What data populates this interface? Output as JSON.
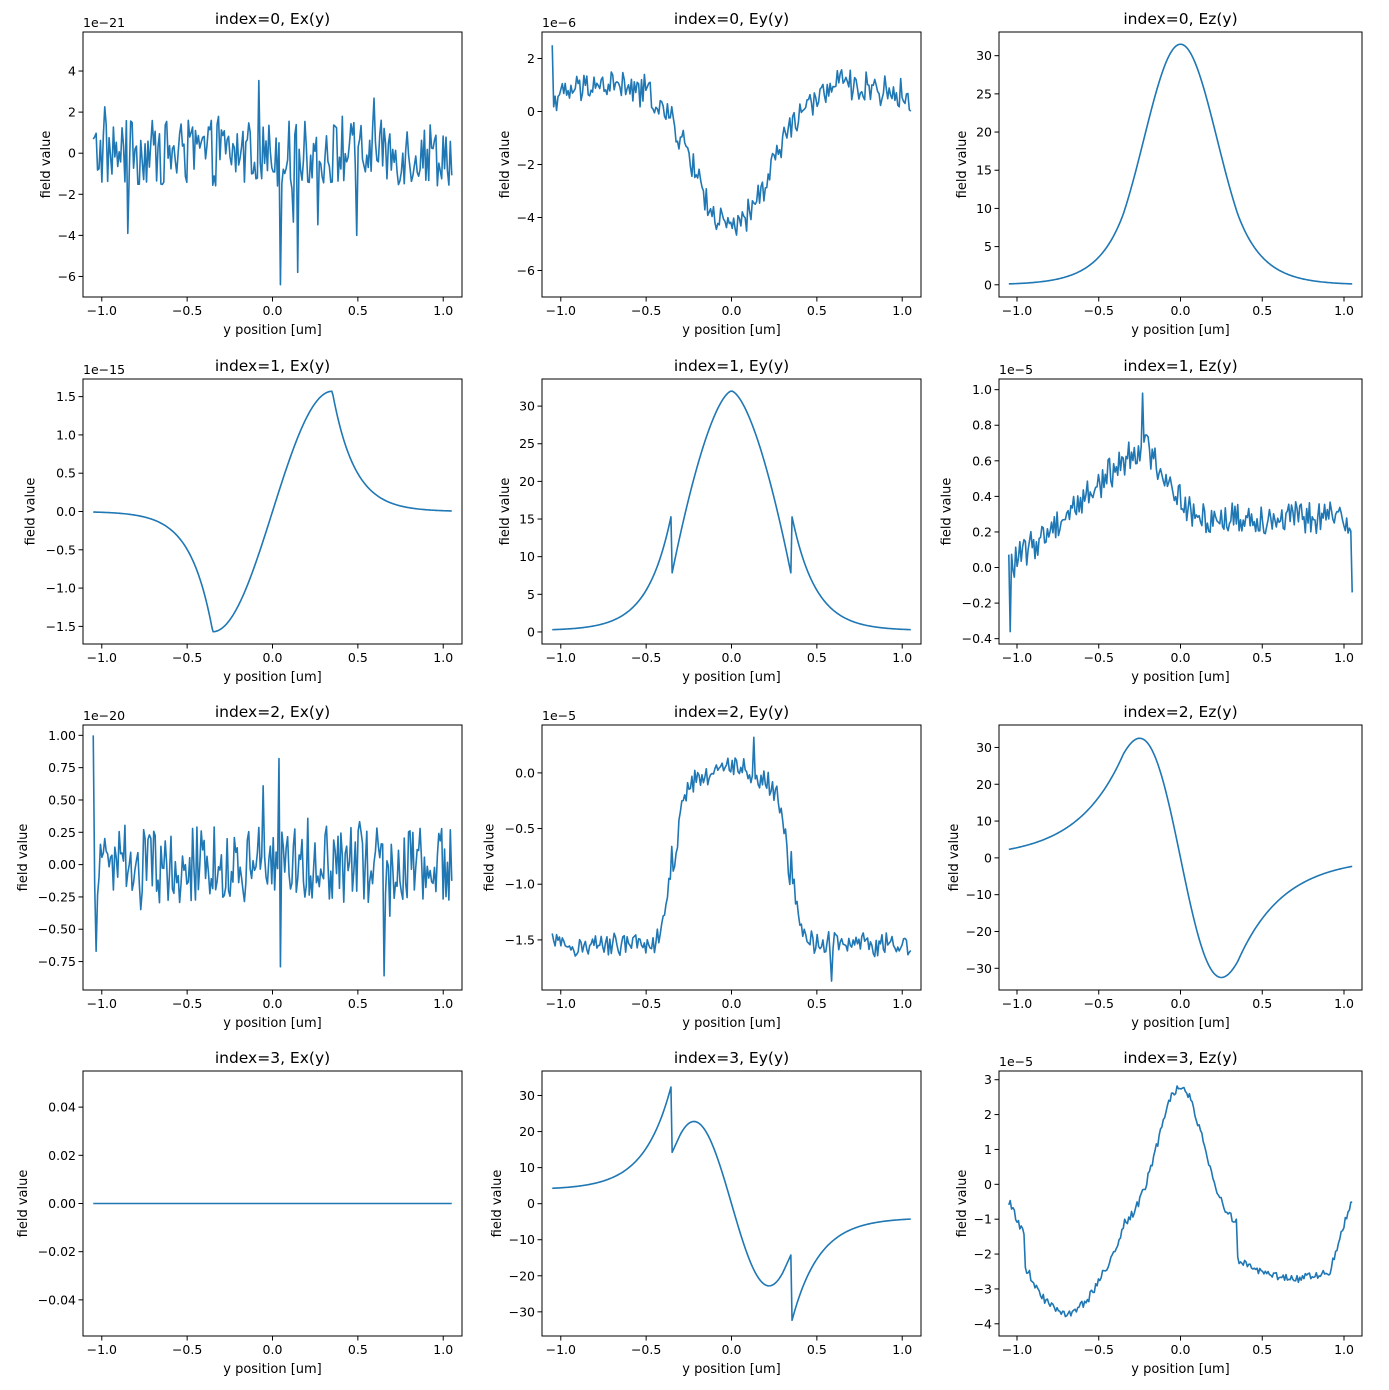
{
  "line_color": "#1f77b4",
  "chart_data": [
    {
      "type": "line",
      "title": "index=0, Ex(y)",
      "xlabel": "y position [um]",
      "ylabel": "field value",
      "offset_text": "1e−21",
      "xlim": [
        -1.11,
        1.11
      ],
      "ylim": [
        -7.0,
        5.9
      ],
      "x_ticks": [
        -1.0,
        -0.5,
        0.0,
        0.5,
        1.0
      ],
      "x_tick_labels": [
        "−1.0",
        "−0.5",
        "0.0",
        "0.5",
        "1.0"
      ],
      "y_ticks": [
        -6,
        -4,
        -2,
        0,
        2,
        4
      ],
      "y_tick_labels": [
        "−6",
        "−4",
        "−2",
        "0",
        "2",
        "4"
      ],
      "series": [
        {
          "x_range": [
            -1.05,
            1.05
          ],
          "n": 250,
          "shape": "noise",
          "noise": 1.6,
          "spikes": [
            [
              0.05,
              -6.4
            ],
            [
              0.49,
              5.3
            ],
            [
              -0.85,
              -3.9
            ],
            [
              0.15,
              -5.8
            ],
            [
              0.49,
              -4.0
            ]
          ]
        }
      ]
    },
    {
      "type": "line",
      "title": "index=0, Ey(y)",
      "xlabel": "y position [um]",
      "ylabel": "field value",
      "offset_text": "1e−6",
      "xlim": [
        -1.11,
        1.11
      ],
      "ylim": [
        -7.0,
        3.0
      ],
      "x_ticks": [
        -1.0,
        -0.5,
        0.0,
        0.5,
        1.0
      ],
      "x_tick_labels": [
        "−1.0",
        "−0.5",
        "0.0",
        "0.5",
        "1.0"
      ],
      "y_ticks": [
        -6,
        -4,
        -2,
        0,
        2
      ],
      "y_tick_labels": [
        "−6",
        "−4",
        "−2",
        "0",
        "2"
      ],
      "series": [
        {
          "x_range": [
            -1.05,
            1.05
          ],
          "n": 250,
          "shape": "gauss_dip",
          "amp": -5.6,
          "base": 1.2,
          "sigma": 0.22,
          "noise": 0.55,
          "spikes": [
            [
              -1.05,
              2.5
            ]
          ]
        }
      ]
    },
    {
      "type": "line",
      "title": "index=0, Ez(y)",
      "xlabel": "y position [um]",
      "ylabel": "field value",
      "offset_text": "",
      "xlim": [
        -1.11,
        1.11
      ],
      "ylim": [
        -1.6,
        33.1
      ],
      "x_ticks": [
        -1.0,
        -0.5,
        0.0,
        0.5,
        1.0
      ],
      "x_tick_labels": [
        "−1.0",
        "−0.5",
        "0.0",
        "0.5",
        "1.0"
      ],
      "y_ticks": [
        0,
        5,
        10,
        15,
        20,
        25,
        30
      ],
      "y_tick_labels": [
        "0",
        "5",
        "10",
        "15",
        "20",
        "25",
        "30"
      ],
      "series": [
        {
          "x_range": [
            -1.05,
            1.05
          ],
          "n": 300,
          "shape": "mode_even",
          "amp": 31.5,
          "a": 0.35,
          "noise": 0
        }
      ]
    },
    {
      "type": "line",
      "title": "index=1, Ex(y)",
      "xlabel": "y position [um]",
      "ylabel": "field value",
      "offset_text": "1e−15",
      "xlim": [
        -1.11,
        1.11
      ],
      "ylim": [
        -1.73,
        1.73
      ],
      "x_ticks": [
        -1.0,
        -0.5,
        0.0,
        0.5,
        1.0
      ],
      "x_tick_labels": [
        "−1.0",
        "−0.5",
        "0.0",
        "0.5",
        "1.0"
      ],
      "y_ticks": [
        -1.5,
        -1.0,
        -0.5,
        0.0,
        0.5,
        1.0,
        1.5
      ],
      "y_tick_labels": [
        "−1.5",
        "−1.0",
        "−0.5",
        "0.0",
        "0.5",
        "1.0",
        "1.5"
      ],
      "series": [
        {
          "x_range": [
            -1.05,
            1.05
          ],
          "n": 300,
          "shape": "mode_odd_sin",
          "amp": 1.57,
          "a": 0.35,
          "noise": 0
        }
      ]
    },
    {
      "type": "line",
      "title": "index=1, Ey(y)",
      "xlabel": "y position [um]",
      "ylabel": "field value",
      "offset_text": "",
      "xlim": [
        -1.11,
        1.11
      ],
      "ylim": [
        -1.6,
        33.6
      ],
      "x_ticks": [
        -1.0,
        -0.5,
        0.0,
        0.5,
        1.0
      ],
      "x_tick_labels": [
        "−1.0",
        "−0.5",
        "0.0",
        "0.5",
        "1.0"
      ],
      "y_ticks": [
        0,
        5,
        10,
        15,
        20,
        25,
        30
      ],
      "y_tick_labels": [
        "0",
        "5",
        "10",
        "15",
        "20",
        "25",
        "30"
      ],
      "series": [
        {
          "x_range": [
            -1.05,
            1.05
          ],
          "n": 300,
          "shape": "mode_even_jump",
          "amp": 32,
          "a": 0.35,
          "inner": 7.6,
          "outer": 15.6,
          "noise": 0
        }
      ]
    },
    {
      "type": "line",
      "title": "index=1, Ez(y)",
      "xlabel": "y position [um]",
      "ylabel": "field value",
      "offset_text": "1e−5",
      "xlim": [
        -1.11,
        1.11
      ],
      "ylim": [
        -0.43,
        1.06
      ],
      "x_ticks": [
        -1.0,
        -0.5,
        0.0,
        0.5,
        1.0
      ],
      "x_tick_labels": [
        "−1.0",
        "−0.5",
        "0.0",
        "0.5",
        "1.0"
      ],
      "y_ticks": [
        -0.4,
        -0.2,
        0.0,
        0.2,
        0.4,
        0.6,
        0.8,
        1.0
      ],
      "y_tick_labels": [
        "−0.4",
        "−0.2",
        "0.0",
        "0.2",
        "0.4",
        "0.6",
        "0.8",
        "1.0"
      ],
      "series": [
        {
          "x_range": [
            -1.05,
            1.05
          ],
          "n": 250,
          "shape": "ez1",
          "noise": 0.09,
          "spikes": [
            [
              -1.04,
              -0.36
            ],
            [
              -0.23,
              0.98
            ],
            [
              1.05,
              -0.14
            ]
          ]
        }
      ]
    },
    {
      "type": "line",
      "title": "index=2, Ex(y)",
      "xlabel": "y position [um]",
      "ylabel": "field value",
      "offset_text": "1e−20",
      "xlim": [
        -1.11,
        1.11
      ],
      "ylim": [
        -0.97,
        1.08
      ],
      "x_ticks": [
        -1.0,
        -0.5,
        0.0,
        0.5,
        1.0
      ],
      "x_tick_labels": [
        "−1.0",
        "−0.5",
        "0.0",
        "0.5",
        "1.0"
      ],
      "y_ticks": [
        -0.75,
        -0.5,
        -0.25,
        0.0,
        0.25,
        0.5,
        0.75,
        1.0
      ],
      "y_tick_labels": [
        "−0.75",
        "−0.50",
        "−0.25",
        "0.00",
        "0.25",
        "0.50",
        "0.75",
        "1.00"
      ],
      "series": [
        {
          "x_range": [
            -1.05,
            1.05
          ],
          "n": 250,
          "shape": "noise",
          "noise": 0.3,
          "spikes": [
            [
              -1.05,
              1.0
            ],
            [
              0.05,
              -0.79
            ],
            [
              0.65,
              -0.86
            ],
            [
              -1.03,
              -0.67
            ],
            [
              0.04,
              0.82
            ]
          ]
        }
      ]
    },
    {
      "type": "line",
      "title": "index=2, Ey(y)",
      "xlabel": "y position [um]",
      "ylabel": "field value",
      "offset_text": "1e−5",
      "xlim": [
        -1.11,
        1.11
      ],
      "ylim": [
        -1.95,
        0.43
      ],
      "x_ticks": [
        -1.0,
        -0.5,
        0.0,
        0.5,
        1.0
      ],
      "x_tick_labels": [
        "−1.0",
        "−0.5",
        "0.0",
        "0.5",
        "1.0"
      ],
      "y_ticks": [
        -1.5,
        -1.0,
        -0.5,
        0.0
      ],
      "y_tick_labels": [
        "−1.5",
        "−1.0",
        "−0.5",
        "0.0"
      ],
      "series": [
        {
          "x_range": [
            -1.05,
            1.05
          ],
          "n": 250,
          "shape": "plateau",
          "inner": 0.05,
          "outer": -1.55,
          "a": 0.35,
          "noise": 0.1,
          "spikes": [
            [
              0.13,
              0.32
            ],
            [
              0.59,
              -1.87
            ]
          ]
        }
      ]
    },
    {
      "type": "line",
      "title": "index=2, Ez(y)",
      "xlabel": "y position [um]",
      "ylabel": "field value",
      "offset_text": "",
      "xlim": [
        -1.11,
        1.11
      ],
      "ylim": [
        -35.9,
        36.1
      ],
      "x_ticks": [
        -1.0,
        -0.5,
        0.0,
        0.5,
        1.0
      ],
      "x_tick_labels": [
        "−1.0",
        "−0.5",
        "0.0",
        "0.5",
        "1.0"
      ],
      "y_ticks": [
        -30,
        -20,
        -10,
        0,
        10,
        20,
        30
      ],
      "y_tick_labels": [
        "−30",
        "−20",
        "−10",
        "0",
        "10",
        "20",
        "30"
      ],
      "series": [
        {
          "x_range": [
            -1.05,
            1.05
          ],
          "n": 300,
          "shape": "mode_odd_neg",
          "amp": 32.5,
          "a": 0.35,
          "noise": 0
        }
      ]
    },
    {
      "type": "line",
      "title": "index=3, Ex(y)",
      "xlabel": "y position [um]",
      "ylabel": "field value",
      "offset_text": "",
      "xlim": [
        -1.11,
        1.11
      ],
      "ylim": [
        -0.055,
        0.055
      ],
      "x_ticks": [
        -1.0,
        -0.5,
        0.0,
        0.5,
        1.0
      ],
      "x_tick_labels": [
        "−1.0",
        "−0.5",
        "0.0",
        "0.5",
        "1.0"
      ],
      "y_ticks": [
        -0.04,
        -0.02,
        0.0,
        0.02,
        0.04
      ],
      "y_tick_labels": [
        "−0.04",
        "−0.02",
        "0.00",
        "0.02",
        "0.04"
      ],
      "series": [
        {
          "x_range": [
            -1.05,
            1.05
          ],
          "n": 2,
          "shape": "flat",
          "value": 0.0,
          "noise": 0
        }
      ]
    },
    {
      "type": "line",
      "title": "index=3, Ey(y)",
      "xlabel": "y position [um]",
      "ylabel": "field value",
      "offset_text": "",
      "xlim": [
        -1.11,
        1.11
      ],
      "ylim": [
        -36.7,
        36.8
      ],
      "x_ticks": [
        -1.0,
        -0.5,
        0.0,
        0.5,
        1.0
      ],
      "x_tick_labels": [
        "−1.0",
        "−0.5",
        "0.0",
        "0.5",
        "1.0"
      ],
      "y_ticks": [
        -30,
        -20,
        -10,
        0,
        10,
        20,
        30
      ],
      "y_tick_labels": [
        "−30",
        "−20",
        "−10",
        "0",
        "10",
        "20",
        "30"
      ],
      "series": [
        {
          "x_range": [
            -1.05,
            1.05
          ],
          "n": 300,
          "shape": "ey3",
          "noise": 0
        }
      ]
    },
    {
      "type": "line",
      "title": "index=3, Ez(y)",
      "xlabel": "y position [um]",
      "ylabel": "field value",
      "offset_text": "1e−5",
      "xlim": [
        -1.11,
        1.11
      ],
      "ylim": [
        -4.35,
        3.25
      ],
      "x_ticks": [
        -1.0,
        -0.5,
        0.0,
        0.5,
        1.0
      ],
      "x_tick_labels": [
        "−1.0",
        "−0.5",
        "0.0",
        "0.5",
        "1.0"
      ],
      "y_ticks": [
        -4,
        -3,
        -2,
        -1,
        0,
        1,
        2,
        3
      ],
      "y_tick_labels": [
        "−4",
        "−3",
        "−2",
        "−1",
        "0",
        "1",
        "2",
        "3"
      ],
      "series": [
        {
          "x_range": [
            -1.05,
            1.05
          ],
          "n": 250,
          "shape": "ez3",
          "noise": 0.12
        }
      ]
    }
  ]
}
